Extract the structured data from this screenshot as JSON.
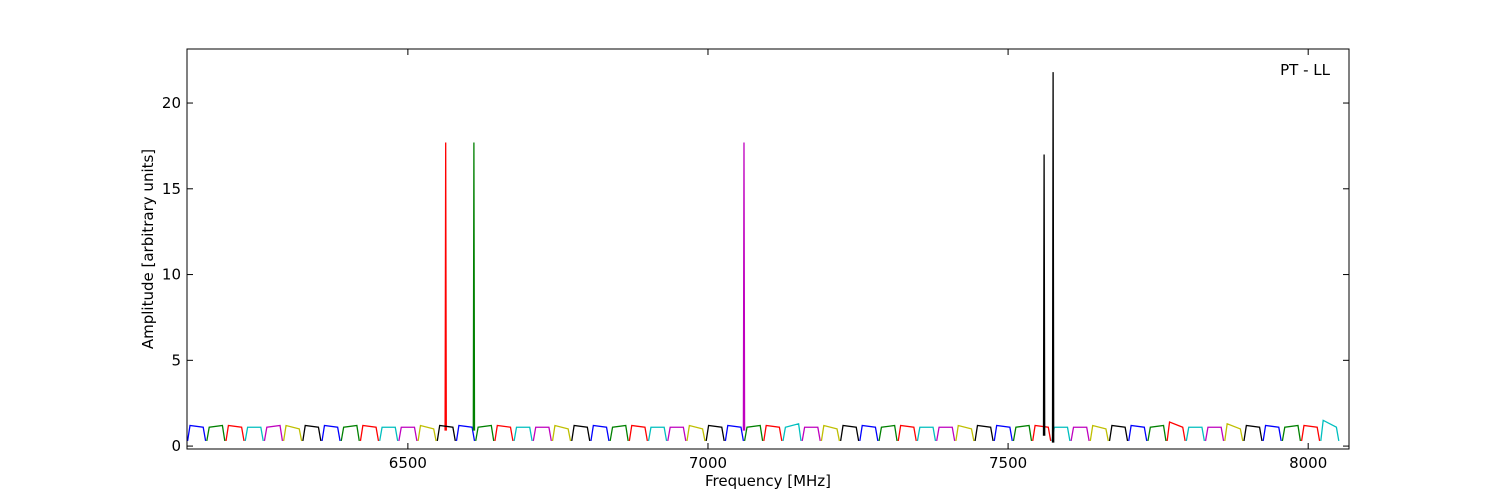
{
  "chart_data": {
    "type": "line",
    "xlabel": "Frequency [MHz]",
    "ylabel": "Amplitude [arbitrary units]",
    "annotation": "PT - LL",
    "xlim": [
      6132,
      8068
    ],
    "ylim": [
      -0.17,
      23.15
    ],
    "xticks": [
      6500,
      7000,
      7500,
      8000
    ],
    "yticks": [
      0,
      5,
      10,
      15,
      20
    ],
    "series": [
      {
        "color": "#0000ff",
        "x": [
          6133,
          6137,
          6159,
          6163,
          null,
          6357,
          6361,
          6383,
          6387,
          null,
          6581,
          6585,
          6607,
          6611,
          null,
          6805,
          6809,
          6831,
          6835,
          null,
          7029,
          7033,
          7055,
          7059,
          null,
          7253,
          7257,
          7279,
          7283,
          null,
          7477,
          7481,
          7503,
          7507,
          null,
          7701,
          7705,
          7727,
          7731,
          null,
          7925,
          7929,
          7951,
          7955
        ],
        "values": [
          0.3,
          1.2,
          1.1,
          0.3,
          null,
          0.3,
          1.2,
          1.1,
          0.3,
          null,
          0.3,
          1.2,
          1.1,
          0.3,
          null,
          0.3,
          1.2,
          1.1,
          0.3,
          null,
          0.3,
          1.2,
          1.1,
          0.3,
          null,
          0.3,
          1.2,
          1.1,
          0.3,
          null,
          0.3,
          1.2,
          1.1,
          0.3,
          null,
          0.3,
          1.2,
          1.1,
          0.3,
          null,
          0.3,
          1.2,
          1.1,
          0.3
        ]
      },
      {
        "color": "#008000",
        "x": [
          6165,
          6169,
          6191,
          6195,
          null,
          6389,
          6393,
          6415,
          6419,
          null,
          6613,
          6617,
          6639,
          6643,
          null,
          6837,
          6841,
          6863,
          6867,
          null,
          7061,
          7065,
          7087,
          7091,
          null,
          7285,
          7289,
          7311,
          7315,
          null,
          7509,
          7513,
          7535,
          7539,
          null,
          7733,
          7737,
          7759,
          7763,
          null,
          7957,
          7961,
          7983,
          7987,
          null,
          6609,
          6610,
          6611
        ],
        "values": [
          0.3,
          1.1,
          1.2,
          0.3,
          null,
          0.3,
          1.1,
          1.2,
          0.3,
          null,
          0.3,
          1.1,
          1.2,
          0.3,
          null,
          0.3,
          1.1,
          1.2,
          0.3,
          null,
          0.3,
          1.1,
          1.2,
          0.3,
          null,
          0.3,
          1.1,
          1.2,
          0.3,
          null,
          0.3,
          1.1,
          1.2,
          0.3,
          null,
          0.3,
          1.1,
          1.2,
          0.3,
          null,
          0.3,
          1.1,
          1.2,
          0.3,
          null,
          0.9,
          17.7,
          0.9
        ]
      },
      {
        "color": "#ff0000",
        "x": [
          6197,
          6201,
          6223,
          6227,
          null,
          6421,
          6425,
          6447,
          6451,
          null,
          6645,
          6649,
          6671,
          6675,
          null,
          6869,
          6873,
          6895,
          6899,
          null,
          7093,
          7097,
          7119,
          7123,
          null,
          7317,
          7321,
          7343,
          7347,
          null,
          7541,
          7545,
          7567,
          7571,
          null,
          7765,
          7769,
          7791,
          7795,
          null,
          7989,
          7993,
          8015,
          8019,
          null,
          6562,
          6563,
          6564
        ],
        "values": [
          0.3,
          1.2,
          1.1,
          0.3,
          null,
          0.3,
          1.2,
          1.1,
          0.3,
          null,
          0.3,
          1.2,
          1.1,
          0.3,
          null,
          0.3,
          1.2,
          1.1,
          0.3,
          null,
          0.3,
          1.2,
          1.1,
          0.3,
          null,
          0.3,
          1.2,
          1.1,
          0.3,
          null,
          0.3,
          1.2,
          1.1,
          0.3,
          null,
          0.3,
          1.4,
          1.1,
          0.3,
          null,
          0.3,
          1.2,
          1.1,
          0.3,
          null,
          0.9,
          17.7,
          0.9
        ]
      },
      {
        "color": "#00bfbf",
        "x": [
          6229,
          6233,
          6255,
          6259,
          null,
          6453,
          6457,
          6479,
          6483,
          null,
          6677,
          6681,
          6703,
          6707,
          null,
          6901,
          6905,
          6927,
          6931,
          null,
          7125,
          7129,
          7151,
          7155,
          null,
          7349,
          7353,
          7375,
          7379,
          null,
          7573,
          7577,
          7599,
          7603,
          null,
          7797,
          7801,
          7823,
          7827,
          null,
          8021,
          8025,
          8047,
          8051
        ],
        "values": [
          0.3,
          1.1,
          1.1,
          0.3,
          null,
          0.3,
          1.1,
          1.1,
          0.3,
          null,
          0.3,
          1.1,
          1.1,
          0.3,
          null,
          0.3,
          1.1,
          1.1,
          0.3,
          null,
          0.3,
          1.1,
          1.3,
          0.3,
          null,
          0.3,
          1.1,
          1.1,
          0.3,
          null,
          0.3,
          1.1,
          1.1,
          0.3,
          null,
          0.3,
          1.1,
          1.1,
          0.3,
          null,
          0.3,
          1.5,
          1.1,
          0.3
        ]
      },
      {
        "color": "#bf00bf",
        "x": [
          6261,
          6265,
          6287,
          6291,
          null,
          6485,
          6489,
          6511,
          6515,
          null,
          6709,
          6713,
          6735,
          6739,
          null,
          6933,
          6937,
          6959,
          6963,
          null,
          7157,
          7161,
          7183,
          7187,
          null,
          7381,
          7385,
          7407,
          7411,
          null,
          7605,
          7609,
          7631,
          7635,
          null,
          7829,
          7833,
          7855,
          7859,
          null,
          7059,
          7060,
          7061
        ],
        "values": [
          0.3,
          1.1,
          1.2,
          0.3,
          null,
          0.3,
          1.1,
          1.1,
          0.3,
          null,
          0.3,
          1.1,
          1.1,
          0.3,
          null,
          0.3,
          1.1,
          1.1,
          0.3,
          null,
          0.3,
          1.1,
          1.1,
          0.3,
          null,
          0.3,
          1.1,
          1.1,
          0.3,
          null,
          0.3,
          1.1,
          1.1,
          0.3,
          null,
          0.3,
          1.1,
          1.1,
          0.3,
          null,
          0.9,
          17.7,
          0.9
        ]
      },
      {
        "color": "#bfbf00",
        "x": [
          6293,
          6297,
          6319,
          6323,
          null,
          6517,
          6521,
          6543,
          6547,
          null,
          6741,
          6745,
          6767,
          6771,
          null,
          6965,
          6969,
          6991,
          6995,
          null,
          7189,
          7193,
          7215,
          7219,
          null,
          7413,
          7417,
          7439,
          7443,
          null,
          7637,
          7641,
          7663,
          7667,
          null,
          7861,
          7865,
          7887,
          7891
        ],
        "values": [
          0.3,
          1.2,
          1.0,
          0.3,
          null,
          0.3,
          1.2,
          1.0,
          0.3,
          null,
          0.3,
          1.2,
          1.0,
          0.3,
          null,
          0.3,
          1.2,
          1.0,
          0.3,
          null,
          0.3,
          1.2,
          1.0,
          0.3,
          null,
          0.3,
          1.2,
          1.0,
          0.3,
          null,
          0.3,
          1.2,
          1.0,
          0.3,
          null,
          0.3,
          1.3,
          1.0,
          0.3
        ]
      },
      {
        "color": "#000000",
        "x": [
          6325,
          6329,
          6351,
          6355,
          null,
          6549,
          6553,
          6575,
          6579,
          null,
          6773,
          6777,
          6799,
          6803,
          null,
          6997,
          7001,
          7023,
          7027,
          null,
          7221,
          7225,
          7247,
          7251,
          null,
          7445,
          7449,
          7471,
          7475,
          null,
          7669,
          7673,
          7695,
          7699,
          null,
          7893,
          7897,
          7919,
          7923,
          null,
          7559,
          7560,
          7561,
          null,
          7574,
          7575,
          7576
        ],
        "values": [
          0.3,
          1.2,
          1.1,
          0.3,
          null,
          0.3,
          1.2,
          1.1,
          0.3,
          null,
          0.3,
          1.2,
          1.1,
          0.3,
          null,
          0.3,
          1.2,
          1.1,
          0.3,
          null,
          0.3,
          1.2,
          1.1,
          0.3,
          null,
          0.3,
          1.2,
          1.1,
          0.3,
          null,
          0.3,
          1.2,
          1.1,
          0.3,
          null,
          0.3,
          1.2,
          1.1,
          0.3,
          null,
          0.6,
          17.0,
          0.6,
          null,
          0.2,
          21.8,
          0.2
        ]
      }
    ]
  }
}
